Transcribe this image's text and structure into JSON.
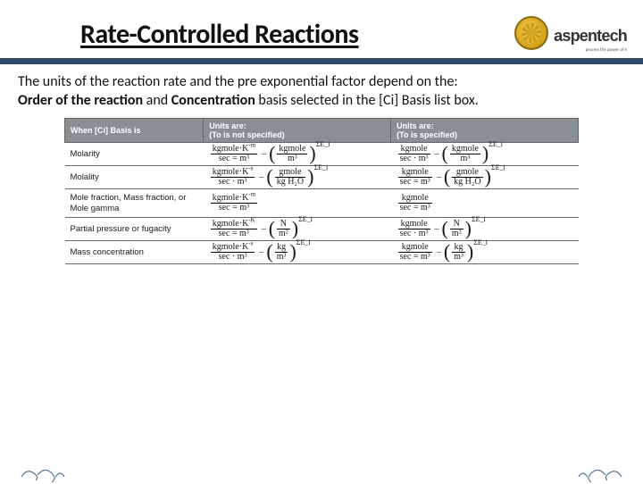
{
  "branding": {
    "logo_text": "aspentech",
    "logo_tagline": "process the power of e",
    "logo_badge_gradient": [
      "#f2c94c",
      "#d4a017",
      "#a07810"
    ],
    "accent_bar_color": "#2a4a68"
  },
  "title": "Rate-Controlled Reactions",
  "intro": {
    "line1_pre": "The units of the reaction rate and the pre exponential factor depend on the:",
    "line2_bold1": "Order of the reaction",
    "line2_mid": " and ",
    "line2_bold2": "Concentration",
    "line2_post": " basis selected in the [Ci] Basis list box."
  },
  "table": {
    "header_bg": "#8a8f93",
    "header_fg": "#ffffff",
    "border_color": "#666666",
    "font_family_label": "Verdana",
    "font_family_formula": "Times New Roman",
    "columns": [
      "When [Ci] Basis is",
      "Units are:\n(To is not specified)",
      "Units are:\n(To is specified)"
    ],
    "rows": [
      {
        "label": "Molarity",
        "col2": {
          "main_num": "kgmole·K",
          "main_num_sup": "-m",
          "main_den": "sec = m³",
          "group_num": "kgmole",
          "group_den": "m³",
          "group_exp": "ΣE_i"
        },
        "col3": {
          "main_num": "kgmole",
          "main_den": "sec · m³",
          "group_num": "kgmole",
          "group_den": "m³",
          "group_exp": "ΣE_i"
        }
      },
      {
        "label": "Molality",
        "col2": {
          "main_num": "kgmole·K",
          "main_num_sup": "-s",
          "main_den": "sec · m³",
          "group_num": "gmole",
          "group_den": "kg H₂O",
          "group_exp": "ΣE_i"
        },
        "col3": {
          "main_num": "kgmole",
          "main_den": "sec = m³",
          "group_num": "gmole",
          "group_den": "kg H₂O",
          "group_exp": "ΣE_i"
        }
      },
      {
        "label": "Mole fraction, Mass fraction, or Mole gamma",
        "col2": {
          "main_num": "kgmole·K",
          "main_num_sup": "-m",
          "main_den": "sec = m³"
        },
        "col3": {
          "main_num": "kgmole",
          "main_den": "sec = m³"
        }
      },
      {
        "label": "Partial pressure or fugacity",
        "col2": {
          "main_num": "kgmole·K",
          "main_num_sup": "-K",
          "main_den": "sec = m³",
          "group_num": "N",
          "group_den": "m²",
          "group_exp": "ΣE_i"
        },
        "col3": {
          "main_num": "kgmole",
          "main_den": "sec · m³",
          "group_num": "N",
          "group_den": "m²",
          "group_exp": "ΣE_i"
        }
      },
      {
        "label": "Mass concentration",
        "col2": {
          "main_num": "kgmole·K",
          "main_num_sup": "-s",
          "main_den": "sec · m³",
          "group_num": "kg",
          "group_den": "m³",
          "group_exp": "ΣE_i"
        },
        "col3": {
          "main_num": "kgmole",
          "main_den": "sec = m³",
          "group_num": "kg",
          "group_den": "m³",
          "group_exp": "ΣE_i"
        }
      }
    ]
  },
  "swirl_color": "#5a7a98"
}
